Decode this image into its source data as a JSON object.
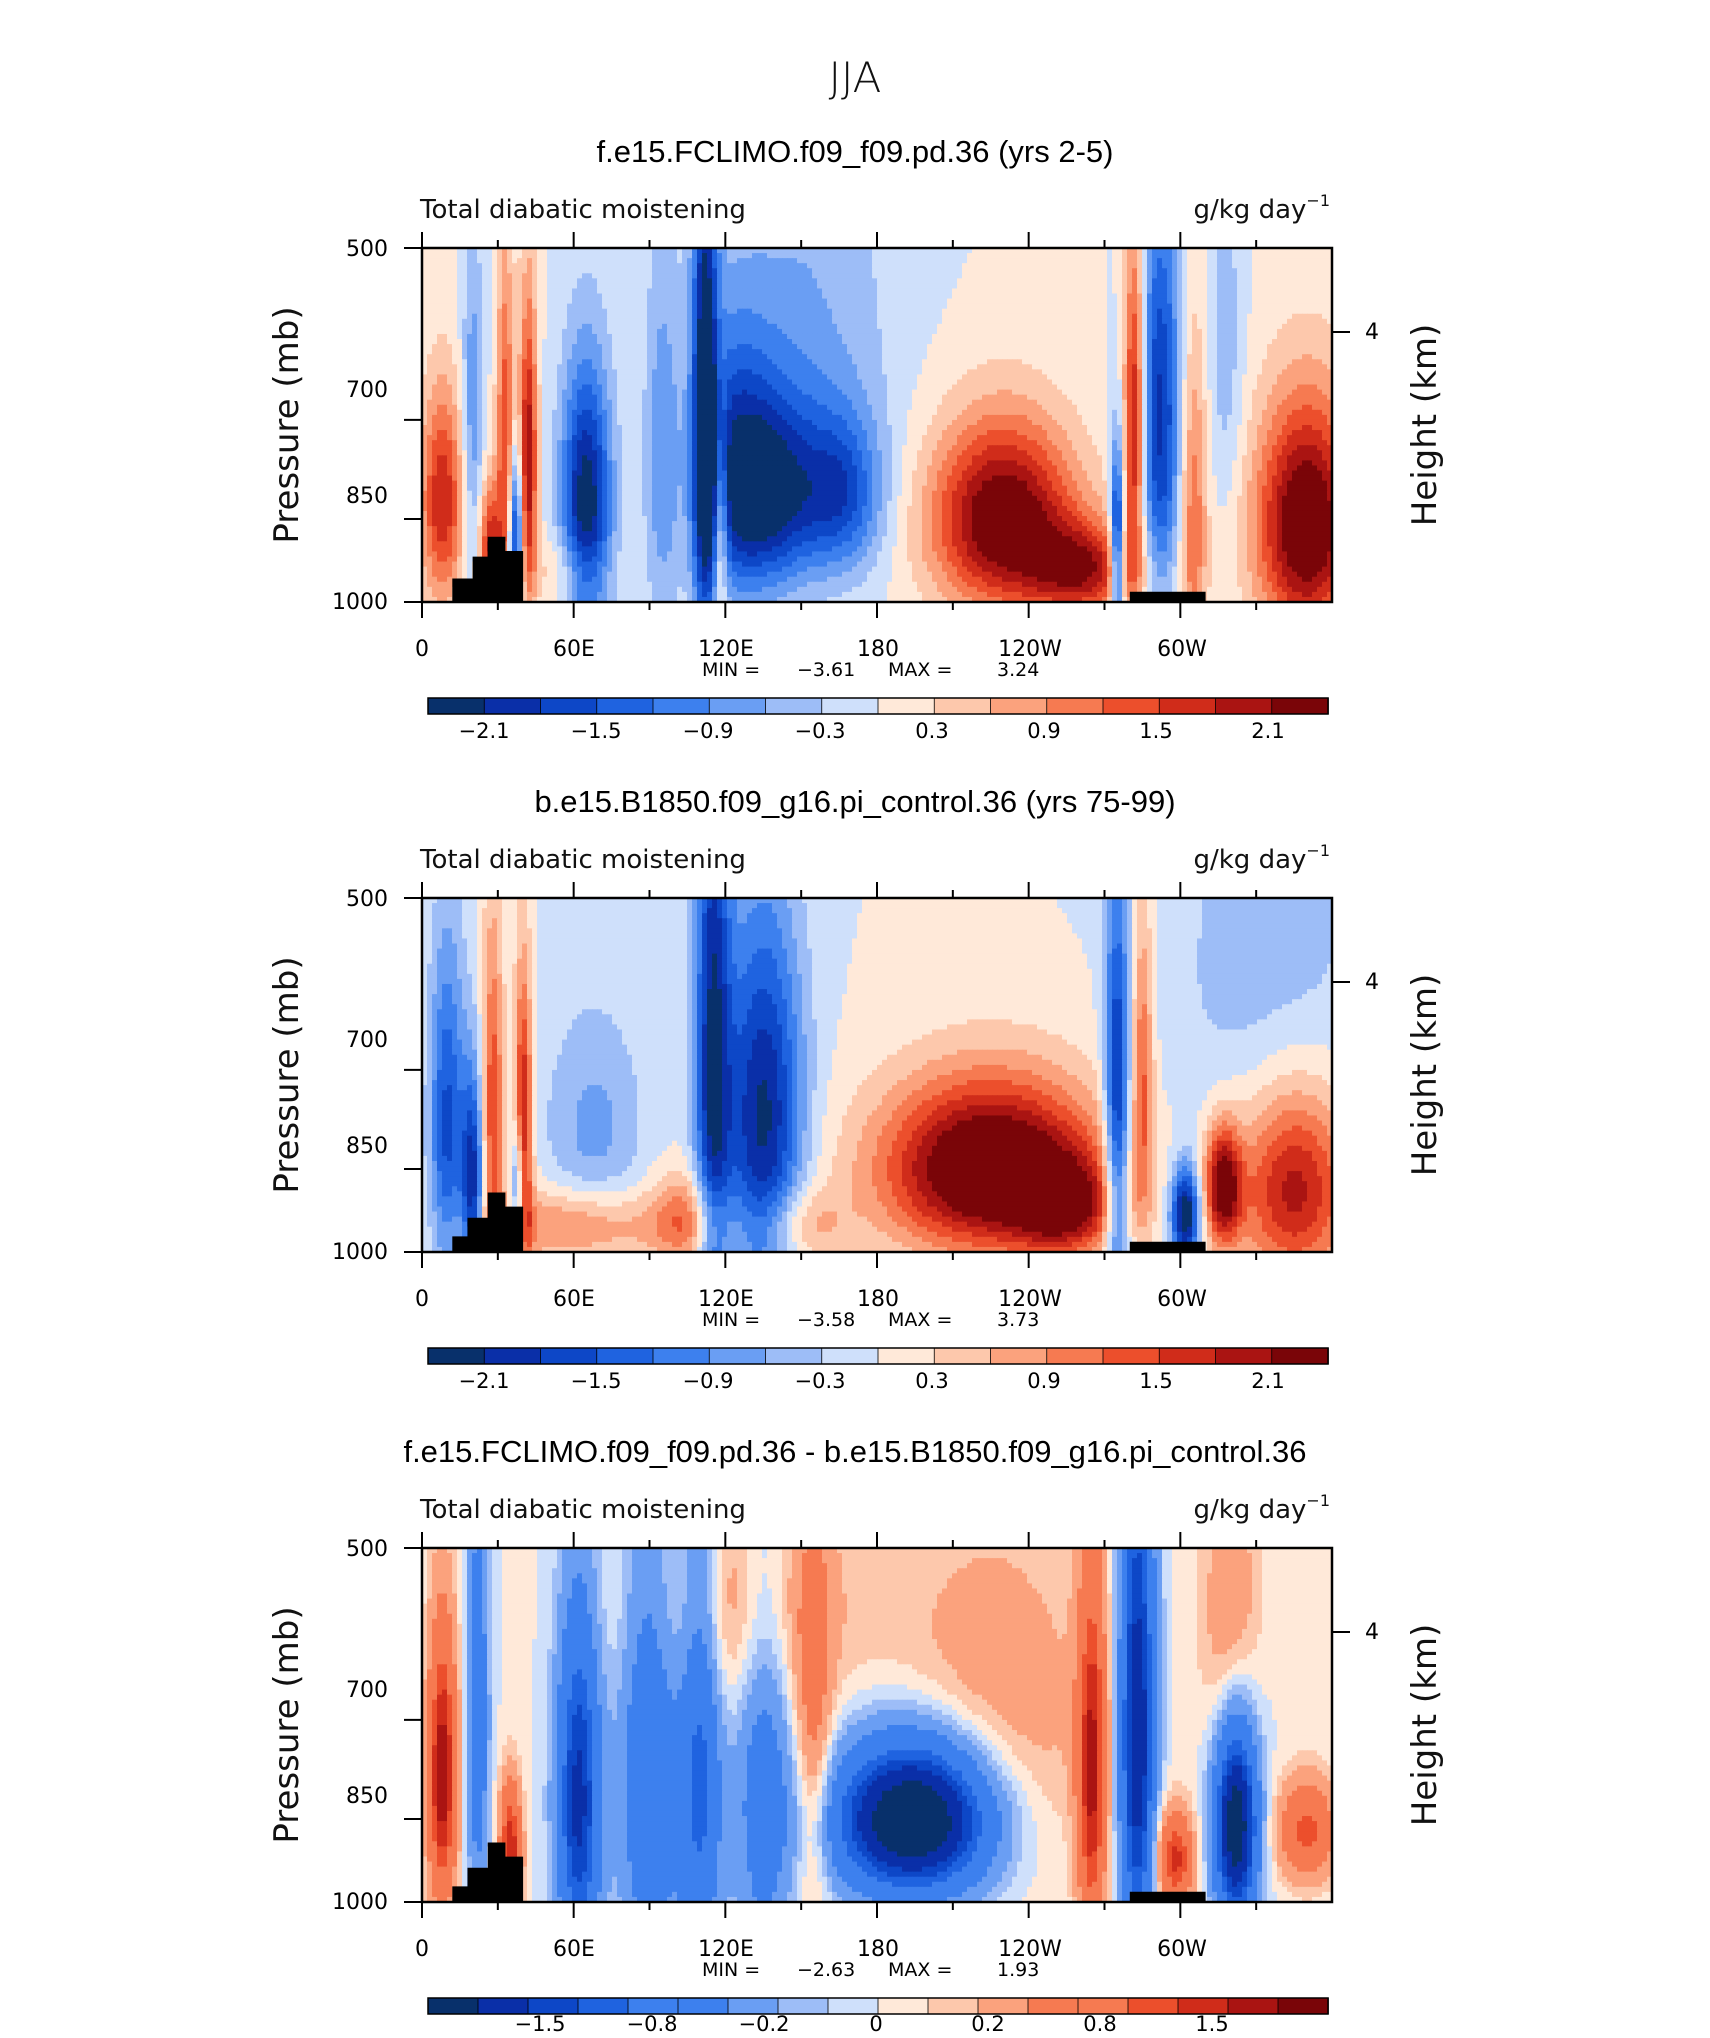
{
  "figure": {
    "title": "JJA"
  },
  "palette": [
    "#08306b",
    "#0a2fa8",
    "#0d47c7",
    "#1f63e0",
    "#3d80ee",
    "#6a9ef3",
    "#9dbdf7",
    "#cfe0fb",
    "#ffe9d9",
    "#fdc8ac",
    "#fba27d",
    "#f67a51",
    "#ec4f2c",
    "#d02c1a",
    "#aa1412",
    "#7a0508"
  ],
  "panels": [
    {
      "title": "f.e15.FCLIMO.f09_f09.pd.36 (yrs 2-5)",
      "left_label": "Total diabatic moistening",
      "right_label": "g/kg day",
      "right_label_sup": "−1",
      "ylabel": "Pressure (mb)",
      "ylabel_right": "Height (km)",
      "yticks": [
        "500",
        "700",
        "850",
        "1000"
      ],
      "yticks_right": [
        "4"
      ],
      "xticks": [
        "0",
        "60E",
        "120E",
        "180",
        "120W",
        "60W"
      ],
      "min_label": "MIN =",
      "min_value": "−3.61",
      "max_label": "MAX =",
      "max_value": "3.24",
      "colorbar_labels": [
        "−2.1",
        "−1.5",
        "−0.9",
        "−0.3",
        "0.3",
        "0.9",
        "1.5",
        "2.1"
      ]
    },
    {
      "title": "b.e15.B1850.f09_g16.pi_control.36 (yrs 75-99)",
      "left_label": "Total diabatic moistening",
      "right_label": "g/kg day",
      "right_label_sup": "−1",
      "ylabel": "Pressure (mb)",
      "ylabel_right": "Height (km)",
      "yticks": [
        "500",
        "700",
        "850",
        "1000"
      ],
      "yticks_right": [
        "4"
      ],
      "xticks": [
        "0",
        "60E",
        "120E",
        "180",
        "120W",
        "60W"
      ],
      "min_label": "MIN =",
      "min_value": "−3.58",
      "max_label": "MAX =",
      "max_value": "3.73",
      "colorbar_labels": [
        "−2.1",
        "−1.5",
        "−0.9",
        "−0.3",
        "0.3",
        "0.9",
        "1.5",
        "2.1"
      ]
    },
    {
      "title": "f.e15.FCLIMO.f09_f09.pd.36 - b.e15.B1850.f09_g16.pi_control.36",
      "left_label": "Total diabatic moistening",
      "right_label": "g/kg day",
      "right_label_sup": "−1",
      "ylabel": "Pressure (mb)",
      "ylabel_right": "Height (km)",
      "yticks": [
        "500",
        "700",
        "850",
        "1000"
      ],
      "yticks_right": [
        "4"
      ],
      "xticks": [
        "0",
        "60E",
        "120E",
        "180",
        "120W",
        "60W"
      ],
      "min_label": "MIN =",
      "min_value": "−2.63",
      "max_label": "MAX =",
      "max_value": "1.93",
      "colorbar_labels": [
        "−1.5",
        "−0.8",
        "−0.2",
        "0",
        "0.2",
        "0.8",
        "1.5"
      ]
    }
  ],
  "chart_data": [
    {
      "type": "heatmap",
      "title": "f.e15.FCLIMO.f09_f09.pd.36 (yrs 2-5)",
      "subtitle": "Total diabatic moistening",
      "units": "g/kg day−1",
      "ylabel": "Pressure (mb)",
      "ylabel_right": "Height (km)",
      "xlim": [
        0,
        360
      ],
      "ylim": [
        1000,
        500
      ],
      "y_scale": "log",
      "min": -3.61,
      "max": 3.24,
      "contour_levels": [
        -2.1,
        -1.8,
        -1.5,
        -1.2,
        -0.9,
        -0.6,
        -0.3,
        0,
        0.3,
        0.6,
        0.9,
        1.2,
        1.5,
        1.8,
        2.1
      ],
      "features": [
        {
          "lon": 8,
          "p": 820,
          "sx": 6,
          "sp": 120,
          "v": 1.8
        },
        {
          "lon": 20,
          "p": 700,
          "sx": 3,
          "sp": 160,
          "v": -0.9
        },
        {
          "lon": 27,
          "p": 900,
          "sx": 3,
          "sp": 80,
          "v": 1.8
        },
        {
          "lon": 33,
          "p": 740,
          "sx": 2.5,
          "sp": 180,
          "v": 1.5
        },
        {
          "lon": 37,
          "p": 880,
          "sx": 2,
          "sp": 100,
          "v": -2.1
        },
        {
          "lon": 42,
          "p": 760,
          "sx": 2.5,
          "sp": 160,
          "v": 2.1
        },
        {
          "lon": 65,
          "p": 830,
          "sx": 7,
          "sp": 150,
          "v": -2.4
        },
        {
          "lon": 58,
          "p": 940,
          "sx": 10,
          "sp": 50,
          "v": 0.6
        },
        {
          "lon": 95,
          "p": 760,
          "sx": 5,
          "sp": 200,
          "v": -0.8
        },
        {
          "lon": 112,
          "p": 680,
          "sx": 3.5,
          "sp": 280,
          "v": -2.2
        },
        {
          "lon": 118,
          "p": 850,
          "sx": 2,
          "sp": 120,
          "v": 1.5
        },
        {
          "lon": 122,
          "p": 780,
          "sx": 10,
          "sp": 140,
          "v": -1.5
        },
        {
          "lon": 138,
          "p": 810,
          "sx": 12,
          "sp": 110,
          "v": -1.9
        },
        {
          "lon": 165,
          "p": 810,
          "sx": 12,
          "sp": 90,
          "v": -1.6
        },
        {
          "lon": 150,
          "p": 580,
          "sx": 25,
          "sp": 180,
          "v": -0.6
        },
        {
          "lon": 230,
          "p": 850,
          "sx": 20,
          "sp": 110,
          "v": 2.6
        },
        {
          "lon": 262,
          "p": 940,
          "sx": 15,
          "sp": 60,
          "v": 1.8
        },
        {
          "lon": 275,
          "p": 900,
          "sx": 2,
          "sp": 120,
          "v": -2.4
        },
        {
          "lon": 282,
          "p": 700,
          "sx": 3,
          "sp": 170,
          "v": 2.1
        },
        {
          "lon": 292,
          "p": 700,
          "sx": 6,
          "sp": 200,
          "v": -1.9
        },
        {
          "lon": 305,
          "p": 850,
          "sx": 4,
          "sp": 200,
          "v": 1.2
        },
        {
          "lon": 318,
          "p": 620,
          "sx": 5,
          "sp": 150,
          "v": -0.5
        },
        {
          "lon": 350,
          "p": 860,
          "sx": 14,
          "sp": 140,
          "v": 2.7
        }
      ],
      "topography": [
        [
          12,
          955
        ],
        [
          20,
          955
        ],
        [
          20,
          915
        ],
        [
          26,
          915
        ],
        [
          26,
          880
        ],
        [
          33,
          880
        ],
        [
          33,
          905
        ],
        [
          40,
          905
        ],
        [
          40,
          1000
        ],
        [
          12,
          1000
        ],
        [
          280,
          980
        ],
        [
          310,
          980
        ],
        [
          310,
          1000
        ],
        [
          280,
          1000
        ]
      ]
    },
    {
      "type": "heatmap",
      "title": "b.e15.B1850.f09_g16.pi_control.36 (yrs 75-99)",
      "subtitle": "Total diabatic moistening",
      "units": "g/kg day−1",
      "ylabel": "Pressure (mb)",
      "ylabel_right": "Height (km)",
      "xlim": [
        0,
        360
      ],
      "ylim": [
        1000,
        500
      ],
      "y_scale": "log",
      "min": -3.58,
      "max": 3.73,
      "contour_levels": [
        -2.1,
        -1.8,
        -1.5,
        -1.2,
        -0.9,
        -0.6,
        -0.3,
        0,
        0.3,
        0.6,
        0.9,
        1.2,
        1.5,
        1.8,
        2.1
      ],
      "features": [
        {
          "lon": 10,
          "p": 780,
          "sx": 5,
          "sp": 180,
          "v": -1.6
        },
        {
          "lon": 20,
          "p": 880,
          "sx": 3,
          "sp": 130,
          "v": -2.0
        },
        {
          "lon": 28,
          "p": 760,
          "sx": 3,
          "sp": 180,
          "v": 1.5
        },
        {
          "lon": 40,
          "p": 800,
          "sx": 2.5,
          "sp": 160,
          "v": 2.2
        },
        {
          "lon": 38,
          "p": 900,
          "sx": 2,
          "sp": 90,
          "v": -1.8
        },
        {
          "lon": 60,
          "p": 950,
          "sx": 25,
          "sp": 50,
          "v": 1.1
        },
        {
          "lon": 68,
          "p": 790,
          "sx": 14,
          "sp": 130,
          "v": -0.7
        },
        {
          "lon": 115,
          "p": 680,
          "sx": 5,
          "sp": 300,
          "v": -2.0
        },
        {
          "lon": 135,
          "p": 770,
          "sx": 11,
          "sp": 200,
          "v": -2.2
        },
        {
          "lon": 105,
          "p": 940,
          "sx": 10,
          "sp": 60,
          "v": 1.1
        },
        {
          "lon": 150,
          "p": 950,
          "sx": 12,
          "sp": 50,
          "v": 0.8
        },
        {
          "lon": 225,
          "p": 850,
          "sx": 30,
          "sp": 100,
          "v": 3.0
        },
        {
          "lon": 255,
          "p": 920,
          "sx": 14,
          "sp": 60,
          "v": 1.5
        },
        {
          "lon": 275,
          "p": 780,
          "sx": 3.5,
          "sp": 220,
          "v": -2.1
        },
        {
          "lon": 285,
          "p": 700,
          "sx": 3,
          "sp": 150,
          "v": 1.2
        },
        {
          "lon": 302,
          "p": 930,
          "sx": 4,
          "sp": 60,
          "v": -2.6
        },
        {
          "lon": 317,
          "p": 880,
          "sx": 5,
          "sp": 70,
          "v": 2.4
        },
        {
          "lon": 345,
          "p": 880,
          "sx": 16,
          "sp": 120,
          "v": 2.0
        },
        {
          "lon": 335,
          "p": 580,
          "sx": 28,
          "sp": 180,
          "v": -0.5
        }
      ],
      "topography": [
        [
          12,
          970
        ],
        [
          18,
          970
        ],
        [
          18,
          935
        ],
        [
          26,
          935
        ],
        [
          26,
          890
        ],
        [
          33,
          890
        ],
        [
          33,
          915
        ],
        [
          40,
          915
        ],
        [
          40,
          1000
        ],
        [
          12,
          1000
        ],
        [
          280,
          980
        ],
        [
          310,
          980
        ],
        [
          310,
          1000
        ],
        [
          280,
          1000
        ]
      ]
    },
    {
      "type": "heatmap",
      "title": "f.e15.FCLIMO.f09_f09.pd.36 - b.e15.B1850.f09_g16.pi_control.36",
      "subtitle": "Total diabatic moistening",
      "units": "g/kg day−1",
      "ylabel": "Pressure (mb)",
      "ylabel_right": "Height (km)",
      "xlim": [
        0,
        360
      ],
      "ylim": [
        1000,
        500
      ],
      "y_scale": "log",
      "min": -2.63,
      "max": 1.93,
      "contour_levels": [
        -1.5,
        -1.2,
        -1.0,
        -0.8,
        -0.6,
        -0.4,
        -0.2,
        -0.1,
        0,
        0.1,
        0.2,
        0.4,
        0.6,
        0.8,
        1.0,
        1.2,
        1.5
      ],
      "features": [
        {
          "lon": 8,
          "p": 780,
          "sx": 4,
          "sp": 150,
          "v": 1.4
        },
        {
          "lon": 22,
          "p": 700,
          "sx": 3,
          "sp": 200,
          "v": -0.7
        },
        {
          "lon": 35,
          "p": 900,
          "sx": 3,
          "sp": 80,
          "v": 1.2
        },
        {
          "lon": 62,
          "p": 820,
          "sx": 6,
          "sp": 200,
          "v": -1.3
        },
        {
          "lon": 90,
          "p": 760,
          "sx": 8,
          "sp": 250,
          "v": -0.8
        },
        {
          "lon": 110,
          "p": 760,
          "sx": 6,
          "sp": 250,
          "v": -0.9
        },
        {
          "lon": 135,
          "p": 780,
          "sx": 8,
          "sp": 250,
          "v": -0.6
        },
        {
          "lon": 125,
          "p": 560,
          "sx": 30,
          "sp": 100,
          "v": 0.4
        },
        {
          "lon": 155,
          "p": 730,
          "sx": 5,
          "sp": 200,
          "v": 0.5
        },
        {
          "lon": 195,
          "p": 850,
          "sx": 22,
          "sp": 90,
          "v": -2.1
        },
        {
          "lon": 225,
          "p": 700,
          "sx": 30,
          "sp": 180,
          "v": 0.35
        },
        {
          "lon": 265,
          "p": 780,
          "sx": 4,
          "sp": 200,
          "v": 1.2
        },
        {
          "lon": 283,
          "p": 720,
          "sx": 5,
          "sp": 250,
          "v": -1.5
        },
        {
          "lon": 298,
          "p": 920,
          "sx": 5,
          "sp": 60,
          "v": 1.1
        },
        {
          "lon": 322,
          "p": 860,
          "sx": 6,
          "sp": 120,
          "v": -1.8
        },
        {
          "lon": 320,
          "p": 580,
          "sx": 8,
          "sp": 120,
          "v": 0.4
        },
        {
          "lon": 350,
          "p": 870,
          "sx": 8,
          "sp": 60,
          "v": 0.9
        }
      ],
      "topography": [
        [
          12,
          970
        ],
        [
          18,
          970
        ],
        [
          18,
          935
        ],
        [
          26,
          935
        ],
        [
          26,
          890
        ],
        [
          33,
          890
        ],
        [
          33,
          915
        ],
        [
          40,
          915
        ],
        [
          40,
          1000
        ],
        [
          12,
          1000
        ],
        [
          280,
          980
        ],
        [
          310,
          980
        ],
        [
          310,
          1000
        ],
        [
          280,
          1000
        ]
      ]
    }
  ]
}
